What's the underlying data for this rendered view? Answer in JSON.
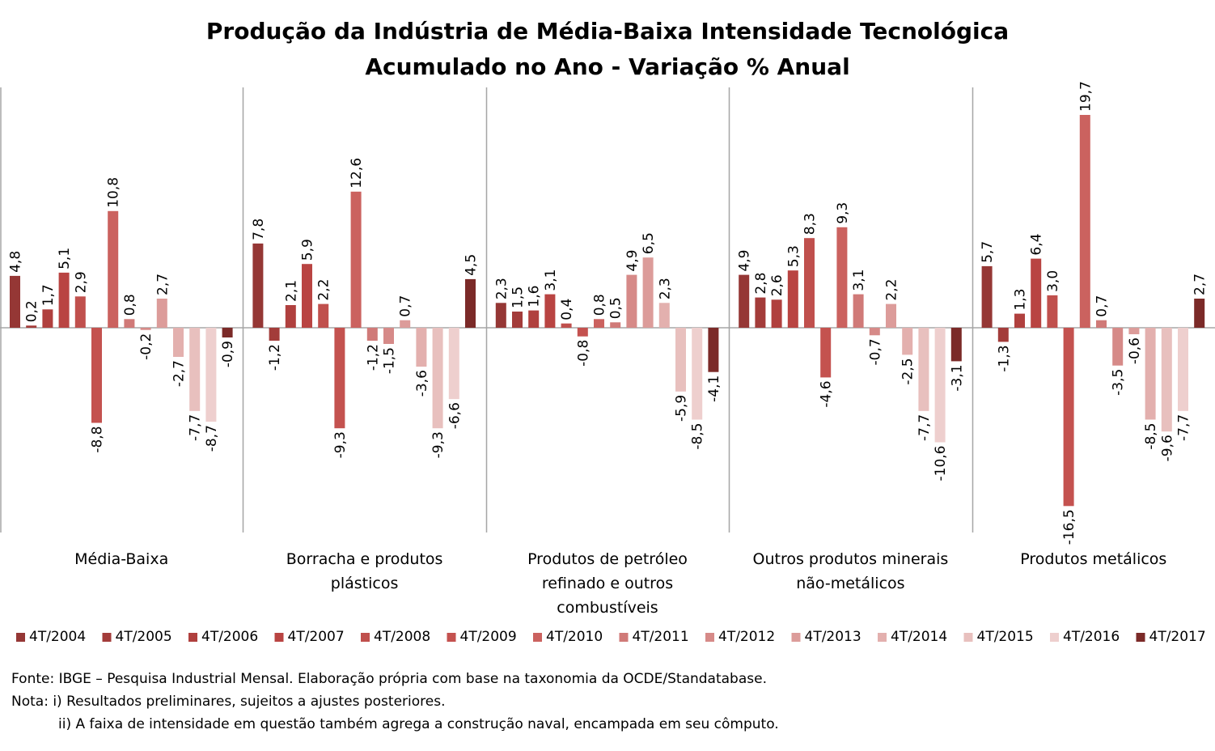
{
  "chart_data": {
    "type": "bar",
    "title": "Produção da Indústria de Média-Baixa Intensidade Tecnológica",
    "subtitle": "Acumulado no Ano - Variação % Anual",
    "categories": [
      "Média-Baixa",
      "Borracha e produtos plásticos",
      "Produtos de petróleo refinado e outros combustíveis",
      "Outros produtos minerais não-metálicos",
      "Produtos metálicos"
    ],
    "category_lines": [
      [
        "Média-Baixa"
      ],
      [
        "Borracha e produtos",
        "plásticos"
      ],
      [
        "Produtos de petróleo",
        "refinado e outros",
        "combustíveis"
      ],
      [
        "Outros produtos minerais",
        "não-metálicos"
      ],
      [
        "Produtos metálicos"
      ]
    ],
    "series": [
      {
        "name": "4T/2004",
        "color": "#953735",
        "values": [
          4.8,
          7.8,
          2.3,
          4.9,
          5.7
        ],
        "labels": [
          "4,8",
          "7,8",
          "2,3",
          "4,9",
          "5,7"
        ]
      },
      {
        "name": "4T/2005",
        "color": "#a33c3a",
        "values": [
          0.2,
          -1.2,
          1.5,
          2.8,
          -1.3
        ],
        "labels": [
          "0,2",
          "-1,2",
          "1,5",
          "2,8",
          "-1,3"
        ]
      },
      {
        "name": "4T/2006",
        "color": "#b0403e",
        "values": [
          1.7,
          2.1,
          1.6,
          2.6,
          1.3
        ],
        "labels": [
          "1,7",
          "2,1",
          "1,6",
          "2,6",
          "1,3"
        ]
      },
      {
        "name": "4T/2007",
        "color": "#b94442",
        "values": [
          5.1,
          5.9,
          3.1,
          5.3,
          6.4
        ],
        "labels": [
          "5,1",
          "5,9",
          "3,1",
          "5,3",
          "6,4"
        ]
      },
      {
        "name": "4T/2008",
        "color": "#c0504d",
        "values": [
          2.9,
          2.2,
          0.4,
          8.3,
          3.0
        ],
        "labels": [
          "2,9",
          "2,2",
          "0,4",
          "8,3",
          "3,0"
        ]
      },
      {
        "name": "4T/2009",
        "color": "#c4524f",
        "values": [
          -8.8,
          -9.3,
          -0.8,
          -4.6,
          -16.5
        ],
        "labels": [
          "-8,8",
          "-9,3",
          "-0,8",
          "-4,6",
          "-16,5"
        ]
      },
      {
        "name": "4T/2010",
        "color": "#cb625f",
        "values": [
          10.8,
          12.6,
          0.8,
          9.3,
          19.7
        ],
        "labels": [
          "10,8",
          "12,6",
          "0,8",
          "9,3",
          "19,7"
        ]
      },
      {
        "name": "4T/2011",
        "color": "#d07a78",
        "values": [
          0.8,
          -1.2,
          0.5,
          3.1,
          0.7
        ],
        "labels": [
          "0,8",
          "-1,2",
          "0,5",
          "3,1",
          "0,7"
        ]
      },
      {
        "name": "4T/2012",
        "color": "#d68a88",
        "values": [
          -0.2,
          -1.5,
          4.9,
          -0.7,
          -3.5
        ],
        "labels": [
          "-0,2",
          "-1,5",
          "4,9",
          "-0,7",
          "-3,5"
        ]
      },
      {
        "name": "4T/2013",
        "color": "#dc9c9a",
        "values": [
          2.7,
          0.7,
          6.5,
          2.2,
          -0.6
        ],
        "labels": [
          "2,7",
          "0,7",
          "6,5",
          "2,2",
          "-0,6"
        ]
      },
      {
        "name": "4T/2014",
        "color": "#e3b0ae",
        "values": [
          -2.7,
          -3.6,
          2.3,
          -2.5,
          -8.5
        ],
        "labels": [
          "-2,7",
          "-3,6",
          "2,3",
          "-2,5",
          "-8,5"
        ]
      },
      {
        "name": "4T/2015",
        "color": "#e8c0be",
        "values": [
          -7.7,
          -9.3,
          -5.9,
          -7.7,
          -9.6
        ],
        "labels": [
          "-7,7",
          "-9,3",
          "-5,9",
          "-7,7",
          "-9,6"
        ]
      },
      {
        "name": "4T/2016",
        "color": "#eecfce",
        "values": [
          -8.7,
          -6.6,
          -8.5,
          -10.6,
          -7.7
        ],
        "labels": [
          "-8,7",
          "-6,6",
          "-8,5",
          "-10,6",
          "-7,7"
        ]
      },
      {
        "name": "4T/2017",
        "color": "#7b2a28",
        "values": [
          -0.9,
          4.5,
          -4.1,
          -3.1,
          2.7
        ],
        "labels": [
          "-0,9",
          "4,5",
          "-4,1",
          "-3,1",
          "2,7"
        ]
      }
    ],
    "ylim": [
      -19.2,
      22.3
    ],
    "grid": false,
    "legend": "bottom"
  },
  "notes": {
    "source": "Fonte: IBGE – Pesquisa Industrial Mensal. Elaboração própria com base na taxonomia da OCDE/Standatabase.",
    "note1": "Nota: i) Resultados preliminares, sujeitos a ajustes posteriores.",
    "note2": "ii) A faixa de intensidade em questão também agrega a construção naval, encampada em seu cômputo."
  }
}
